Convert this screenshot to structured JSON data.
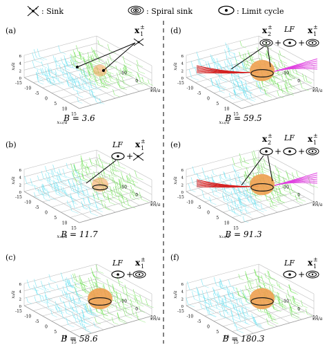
{
  "legend": {
    "sink": ": Sink",
    "spiral_sink": ": Spiral sink",
    "limit_cycle": ": Limit cycle"
  },
  "axes": {
    "vertical": "x₃/a",
    "left": "x₁₂/a",
    "right": "x₁₃/a",
    "left_ticks": [
      "-15",
      "-10",
      "-5",
      "0",
      "5",
      "10",
      "15"
    ],
    "right_ticks": [
      "-10",
      "0",
      "10"
    ],
    "vert_ticks": [
      "6",
      "4",
      "2",
      "0"
    ]
  },
  "panels": [
    {
      "id": "a",
      "tag": "(a)",
      "b_label": "B = 3.6",
      "annot": {
        "sub": "1",
        "sup": "±",
        "prefix": "",
        "plus": "",
        "sink_glyph": "true"
      }
    },
    {
      "id": "b",
      "tag": "(b)",
      "b_label": "B = 11.7",
      "annot": {
        "lf": "LF",
        "plus": "+",
        "sub": "1",
        "sup": "±"
      }
    },
    {
      "id": "c",
      "tag": "(c)",
      "b_label": "B = 58.6",
      "annot": {
        "lf": "LF",
        "plus": "+",
        "sub": "1",
        "sup": "±"
      }
    },
    {
      "id": "d",
      "tag": "(d)",
      "b_label": "B = 59.5",
      "annot": {
        "lf": "LF",
        "plus": "+",
        "sub2": "2",
        "sub1": "1",
        "sup": "±"
      }
    },
    {
      "id": "e",
      "tag": "(e)",
      "b_label": "B = 91.3",
      "annot": {
        "lf": "LF",
        "plus": "+",
        "sub2": "2",
        "sub1": "1",
        "sup": "±"
      }
    },
    {
      "id": "f",
      "tag": "(f)",
      "b_label": "B = 180.3",
      "annot": {
        "lf": "LF",
        "plus": "+",
        "sub": "1",
        "sup": "±"
      }
    }
  ],
  "colors": {
    "cyan": "#63e0f0",
    "green": "#66e04a",
    "red": "#d42020",
    "magenta": "#e040e0",
    "orange": "#f0a050",
    "grid": "#bdbdbd"
  }
}
